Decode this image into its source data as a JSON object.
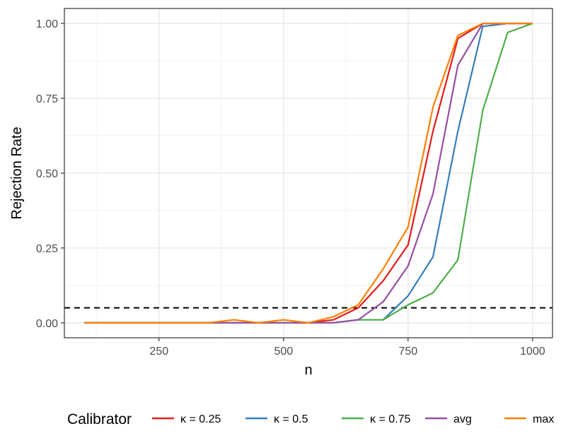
{
  "chart_data": {
    "type": "line",
    "xlabel": "n",
    "ylabel": "Rejection Rate",
    "xlim": [
      60,
      1040
    ],
    "ylim": [
      -0.05,
      1.05
    ],
    "x_ticks": [
      250,
      500,
      750,
      1000
    ],
    "x_tick_labels": [
      "250",
      "500",
      "750",
      "1000"
    ],
    "y_ticks": [
      0,
      0.25,
      0.5,
      0.75,
      1
    ],
    "y_tick_labels": [
      "0.00",
      "0.25",
      "0.50",
      "0.75",
      "1.00"
    ],
    "grid": true,
    "reference_line": {
      "y": 0.05,
      "style": "dashed",
      "color": "#000000"
    },
    "legend": {
      "title": "Calibrator",
      "position": "bottom"
    },
    "x": [
      100,
      150,
      200,
      250,
      300,
      350,
      400,
      450,
      500,
      550,
      600,
      650,
      700,
      750,
      800,
      850,
      900,
      950,
      1000
    ],
    "series": [
      {
        "name": "κ = 0.25",
        "color": "#E41A1C",
        "values": [
          0,
          0,
          0,
          0,
          0,
          0,
          0,
          0,
          0,
          0,
          0.01,
          0.05,
          0.14,
          0.26,
          0.64,
          0.95,
          1.0,
          1.0,
          1.0
        ]
      },
      {
        "name": "κ = 0.5",
        "color": "#377EB8",
        "values": [
          0,
          0,
          0,
          0,
          0,
          0,
          0,
          0,
          0,
          0,
          0,
          0.01,
          0.01,
          0.09,
          0.22,
          0.64,
          0.99,
          1.0,
          1.0
        ]
      },
      {
        "name": "κ = 0.75",
        "color": "#4DAF4A",
        "values": [
          0,
          0,
          0,
          0,
          0,
          0,
          0,
          0,
          0,
          0,
          0,
          0.01,
          0.01,
          0.06,
          0.1,
          0.21,
          0.71,
          0.97,
          1.0
        ]
      },
      {
        "name": "avg",
        "color": "#984EA3",
        "values": [
          0,
          0,
          0,
          0,
          0,
          0,
          0,
          0,
          0,
          0,
          0,
          0.01,
          0.07,
          0.19,
          0.43,
          0.86,
          1.0,
          1.0,
          1.0
        ]
      },
      {
        "name": "max",
        "color": "#FF7F00",
        "values": [
          0,
          0,
          0,
          0,
          0,
          0,
          0.01,
          0,
          0.01,
          0,
          0.02,
          0.06,
          0.18,
          0.32,
          0.72,
          0.96,
          1.0,
          1.0,
          1.0
        ]
      }
    ]
  }
}
